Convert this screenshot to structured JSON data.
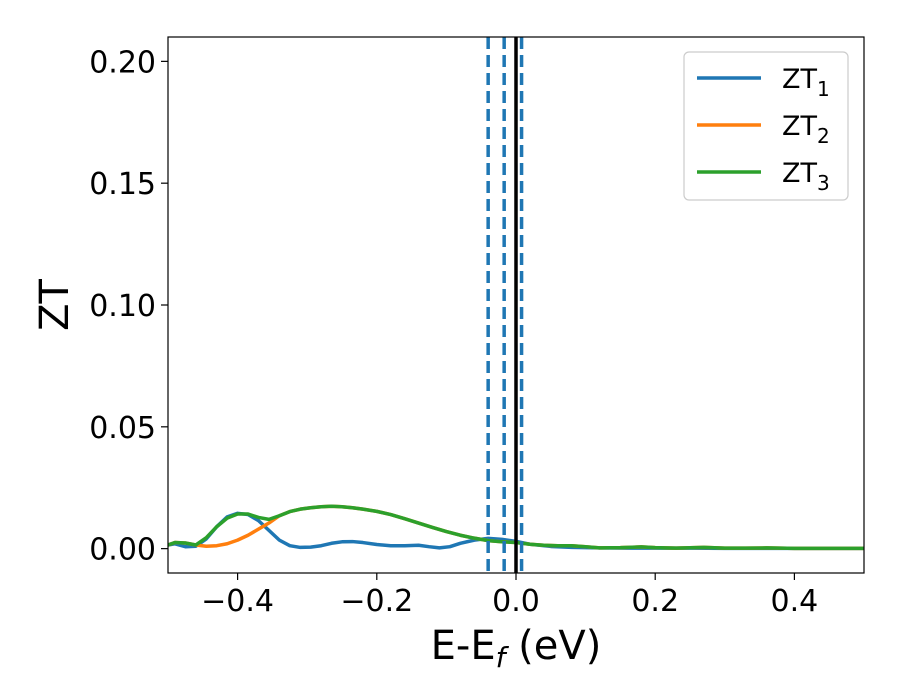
{
  "chart_data": {
    "type": "line",
    "xlabel": "E-E",
    "xlabel_sub": "f",
    "xlabel_unit": " (eV)",
    "ylabel": "ZT",
    "xlim": [
      -0.5,
      0.5
    ],
    "ylim": [
      -0.01,
      0.21
    ],
    "xticks": [
      -0.4,
      -0.2,
      0.0,
      0.2,
      0.4
    ],
    "xtick_labels": [
      "−0.4",
      "−0.2",
      "0.0",
      "0.2",
      "0.4"
    ],
    "yticks": [
      0.0,
      0.05,
      0.1,
      0.15,
      0.2
    ],
    "ytick_labels": [
      "0.00",
      "0.05",
      "0.10",
      "0.15",
      "0.20"
    ],
    "grid": false,
    "legend_position": "top-right",
    "vlines": [
      {
        "x": 0.0,
        "style": "solid",
        "color": "#000000"
      },
      {
        "x": -0.04,
        "style": "dashed",
        "color": "#1f77b4"
      },
      {
        "x": -0.017,
        "style": "dashed",
        "color": "#1f77b4"
      },
      {
        "x": 0.008,
        "style": "dashed",
        "color": "#1f77b4"
      }
    ],
    "series": [
      {
        "name": "ZT",
        "name_sub": "1",
        "color": "#1f77b4",
        "points": [
          [
            -0.5,
            0.0015
          ],
          [
            -0.49,
            0.002
          ],
          [
            -0.475,
            0.0008
          ],
          [
            -0.46,
            0.001
          ],
          [
            -0.445,
            0.004
          ],
          [
            -0.43,
            0.009
          ],
          [
            -0.415,
            0.013
          ],
          [
            -0.4,
            0.0145
          ],
          [
            -0.385,
            0.014
          ],
          [
            -0.37,
            0.0115
          ],
          [
            -0.355,
            0.0075
          ],
          [
            -0.34,
            0.0035
          ],
          [
            -0.325,
            0.0012
          ],
          [
            -0.31,
            0.0005
          ],
          [
            -0.295,
            0.0006
          ],
          [
            -0.28,
            0.0012
          ],
          [
            -0.265,
            0.0022
          ],
          [
            -0.25,
            0.0028
          ],
          [
            -0.235,
            0.0029
          ],
          [
            -0.22,
            0.0025
          ],
          [
            -0.2,
            0.0017
          ],
          [
            -0.18,
            0.0012
          ],
          [
            -0.16,
            0.0012
          ],
          [
            -0.14,
            0.0014
          ],
          [
            -0.125,
            0.0008
          ],
          [
            -0.11,
            0.0003
          ],
          [
            -0.095,
            0.0008
          ],
          [
            -0.08,
            0.0022
          ],
          [
            -0.06,
            0.0035
          ],
          [
            -0.04,
            0.0042
          ],
          [
            -0.02,
            0.0038
          ],
          [
            0.0,
            0.003
          ],
          [
            0.02,
            0.0018
          ],
          [
            0.05,
            0.0009
          ],
          [
            0.08,
            0.0005
          ],
          [
            0.12,
            0.0003
          ],
          [
            0.16,
            0.0002
          ],
          [
            0.2,
            0.0002
          ],
          [
            0.25,
            0.0002
          ],
          [
            0.3,
            0.0001
          ],
          [
            0.35,
            0.0001
          ],
          [
            0.4,
            0.0001
          ],
          [
            0.45,
            0.0001
          ],
          [
            0.5,
            0.0001
          ]
        ]
      },
      {
        "name": "ZT",
        "name_sub": "2",
        "color": "#ff7f0e",
        "points": [
          [
            -0.5,
            0.0015
          ],
          [
            -0.49,
            0.0025
          ],
          [
            -0.475,
            0.0023
          ],
          [
            -0.46,
            0.0015
          ],
          [
            -0.445,
            0.001
          ],
          [
            -0.43,
            0.0012
          ],
          [
            -0.415,
            0.002
          ],
          [
            -0.4,
            0.0035
          ],
          [
            -0.385,
            0.0055
          ],
          [
            -0.37,
            0.008
          ],
          [
            -0.355,
            0.0105
          ],
          [
            -0.34,
            0.0135
          ],
          [
            -0.325,
            0.0152
          ],
          [
            -0.31,
            0.0162
          ],
          [
            -0.295,
            0.0168
          ],
          [
            -0.28,
            0.0172
          ],
          [
            -0.265,
            0.0174
          ],
          [
            -0.25,
            0.0172
          ],
          [
            -0.235,
            0.0168
          ],
          [
            -0.22,
            0.0162
          ],
          [
            -0.2,
            0.0153
          ],
          [
            -0.18,
            0.014
          ],
          [
            -0.16,
            0.0123
          ],
          [
            -0.14,
            0.0105
          ],
          [
            -0.12,
            0.0087
          ],
          [
            -0.1,
            0.007
          ],
          [
            -0.08,
            0.0055
          ],
          [
            -0.06,
            0.0043
          ],
          [
            -0.04,
            0.0033
          ],
          [
            -0.02,
            0.0028
          ],
          [
            0.0,
            0.0025
          ],
          [
            0.02,
            0.0018
          ],
          [
            0.04,
            0.0014
          ],
          [
            0.06,
            0.0012
          ],
          [
            0.08,
            0.0012
          ],
          [
            0.1,
            0.0008
          ],
          [
            0.12,
            0.0003
          ],
          [
            0.15,
            0.0004
          ],
          [
            0.18,
            0.0007
          ],
          [
            0.2,
            0.0004
          ],
          [
            0.23,
            0.0002
          ],
          [
            0.27,
            0.0005
          ],
          [
            0.3,
            0.0002
          ],
          [
            0.33,
            0.0002
          ],
          [
            0.36,
            0.0003
          ],
          [
            0.4,
            0.0001
          ],
          [
            0.45,
            0.0001
          ],
          [
            0.5,
            0.0001
          ]
        ]
      },
      {
        "name": "ZT",
        "name_sub": "3",
        "color": "#2ca02c",
        "points": [
          [
            -0.5,
            0.0015
          ],
          [
            -0.49,
            0.0025
          ],
          [
            -0.475,
            0.0023
          ],
          [
            -0.46,
            0.0015
          ],
          [
            -0.445,
            0.0045
          ],
          [
            -0.43,
            0.009
          ],
          [
            -0.415,
            0.0125
          ],
          [
            -0.4,
            0.0142
          ],
          [
            -0.385,
            0.0142
          ],
          [
            -0.37,
            0.0128
          ],
          [
            -0.355,
            0.012
          ],
          [
            -0.34,
            0.0135
          ],
          [
            -0.325,
            0.0152
          ],
          [
            -0.31,
            0.0162
          ],
          [
            -0.295,
            0.0168
          ],
          [
            -0.28,
            0.0172
          ],
          [
            -0.265,
            0.0174
          ],
          [
            -0.25,
            0.0172
          ],
          [
            -0.235,
            0.0168
          ],
          [
            -0.22,
            0.0162
          ],
          [
            -0.2,
            0.0153
          ],
          [
            -0.18,
            0.014
          ],
          [
            -0.16,
            0.0123
          ],
          [
            -0.14,
            0.0105
          ],
          [
            -0.12,
            0.0087
          ],
          [
            -0.1,
            0.007
          ],
          [
            -0.08,
            0.0055
          ],
          [
            -0.06,
            0.0043
          ],
          [
            -0.04,
            0.0033
          ],
          [
            -0.02,
            0.0028
          ],
          [
            0.0,
            0.0025
          ],
          [
            0.02,
            0.0018
          ],
          [
            0.04,
            0.0014
          ],
          [
            0.06,
            0.0012
          ],
          [
            0.08,
            0.0012
          ],
          [
            0.1,
            0.0008
          ],
          [
            0.12,
            0.0003
          ],
          [
            0.15,
            0.0004
          ],
          [
            0.18,
            0.0007
          ],
          [
            0.2,
            0.0004
          ],
          [
            0.23,
            0.0002
          ],
          [
            0.27,
            0.0005
          ],
          [
            0.3,
            0.0002
          ],
          [
            0.33,
            0.0002
          ],
          [
            0.36,
            0.0003
          ],
          [
            0.4,
            0.0001
          ],
          [
            0.45,
            0.0001
          ],
          [
            0.5,
            0.0001
          ]
        ]
      }
    ]
  }
}
